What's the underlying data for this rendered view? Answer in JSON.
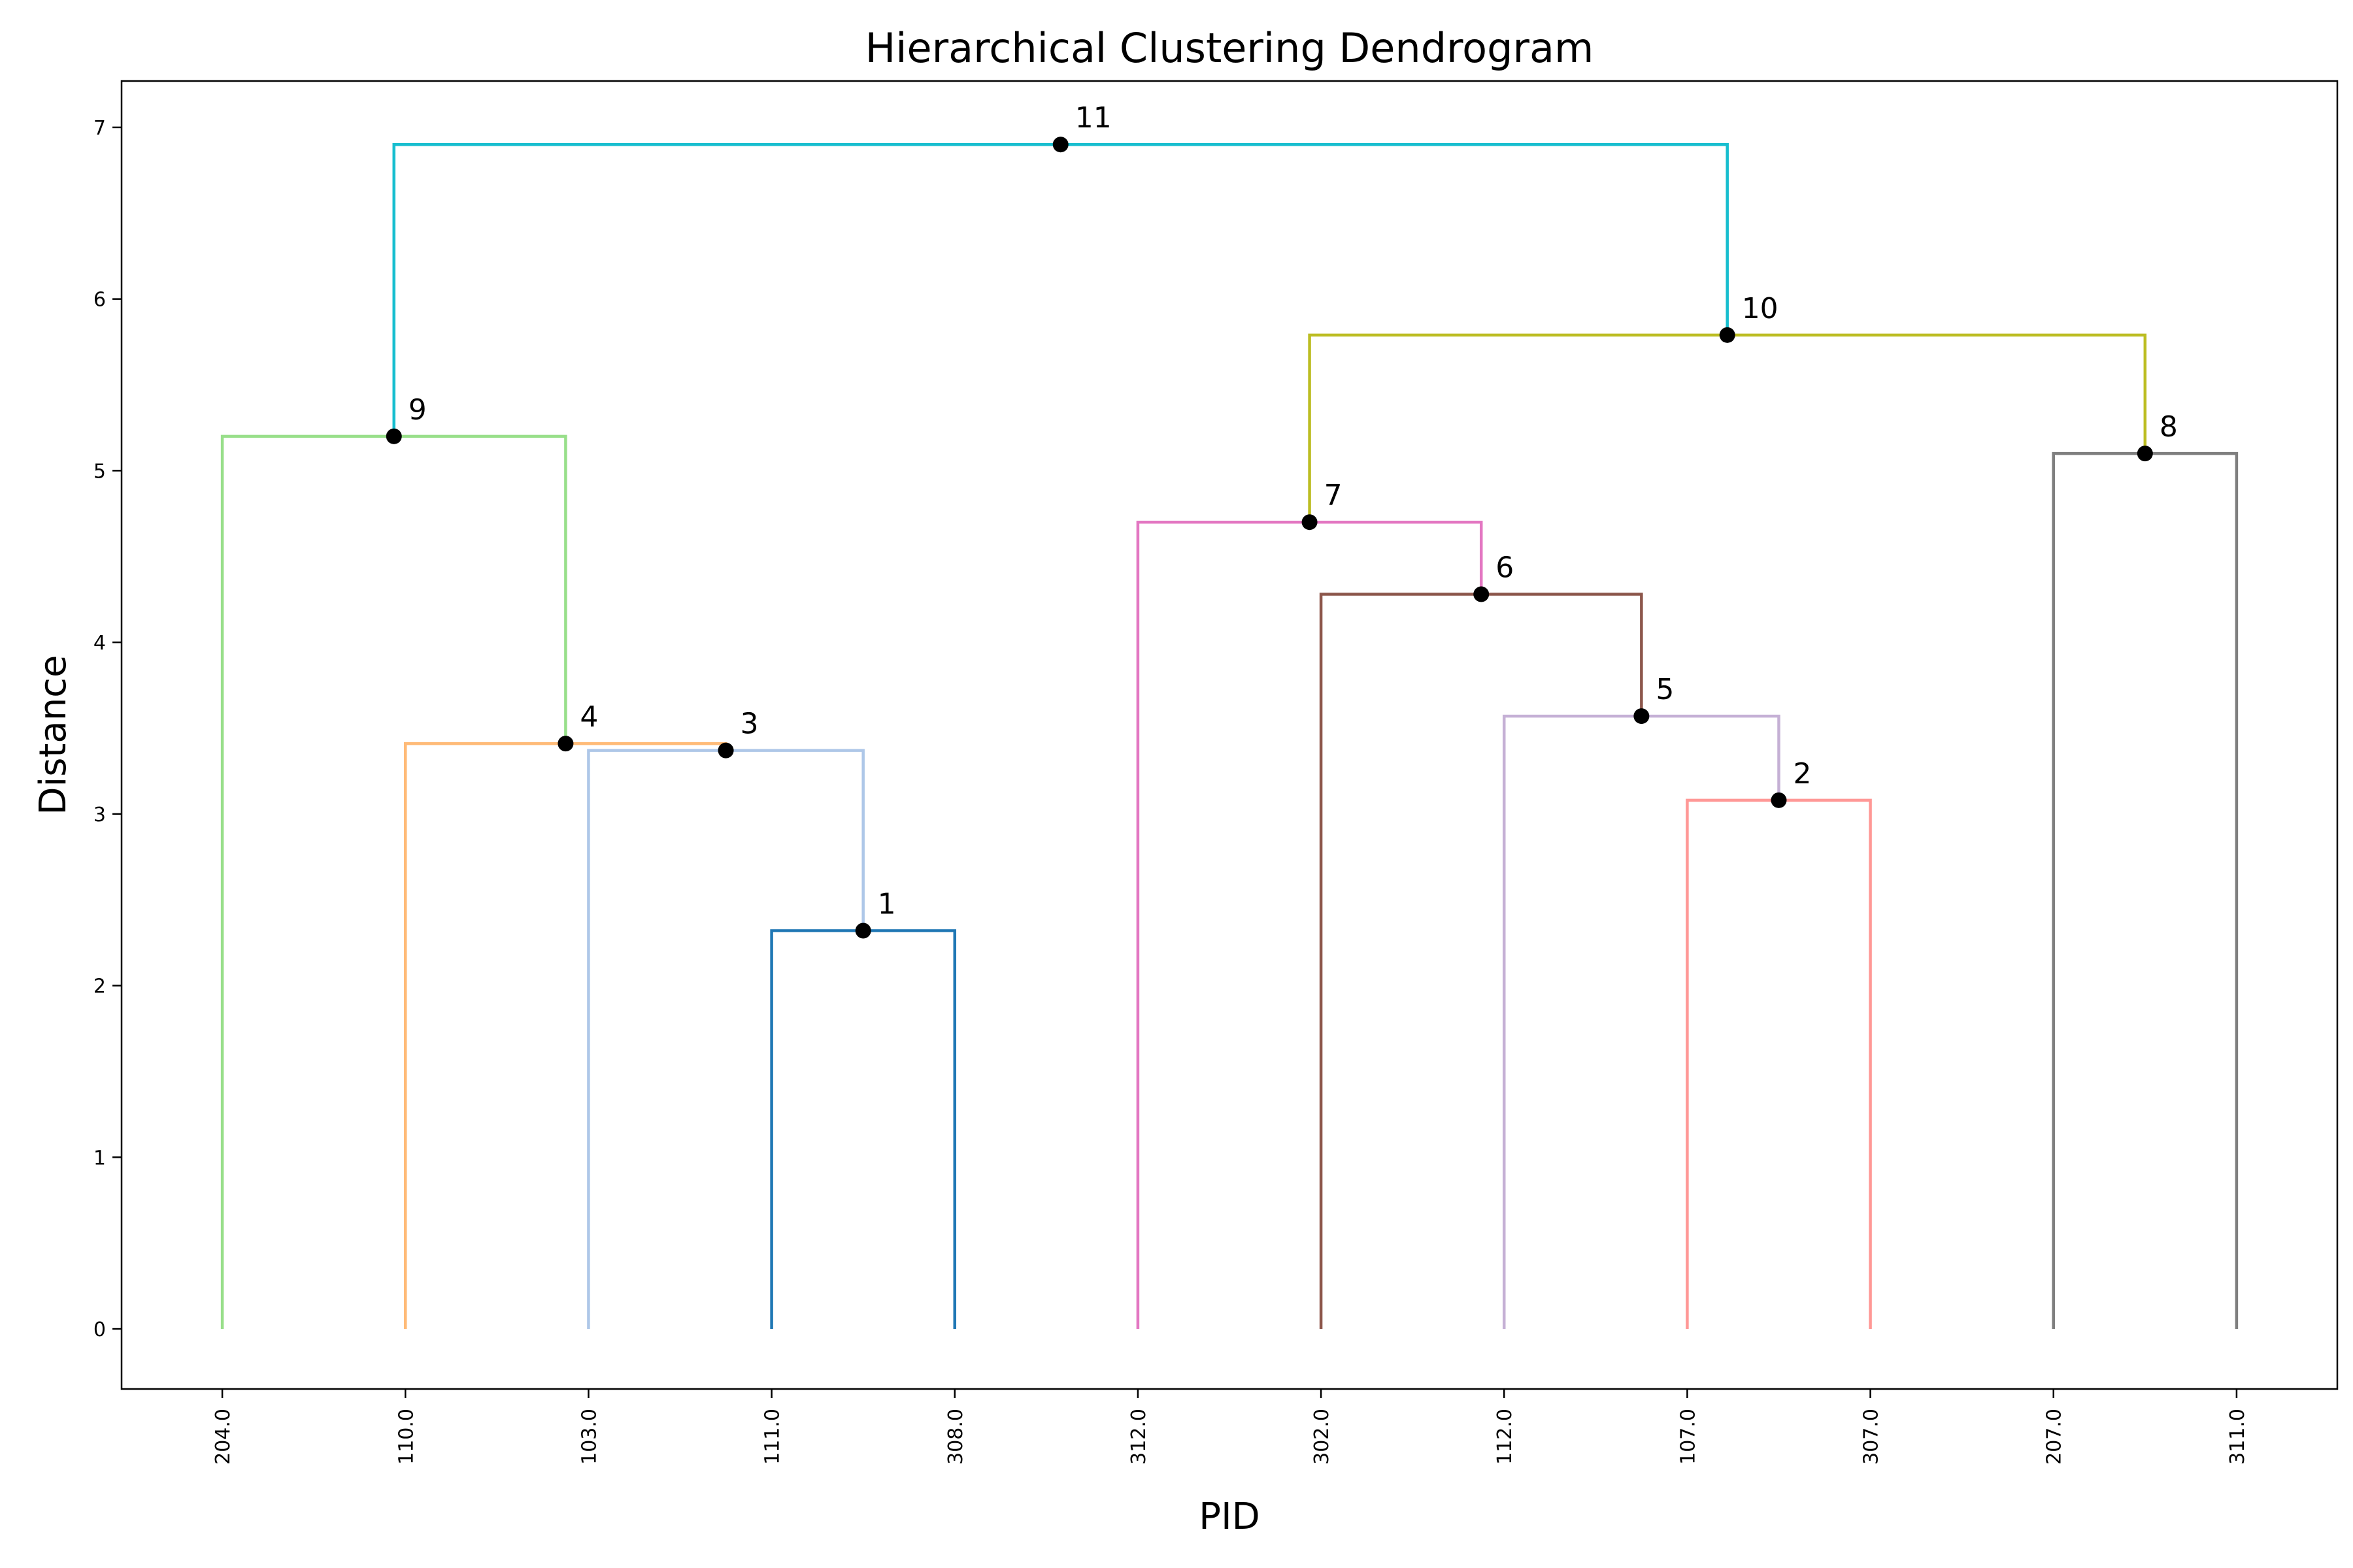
{
  "chart_data": {
    "type": "dendrogram",
    "title": "Hierarchical Clustering Dendrogram",
    "xlabel": "PID",
    "ylabel": "Distance",
    "ylim": [
      -0.35,
      7.27
    ],
    "yticks": [
      0,
      1,
      2,
      3,
      4,
      5,
      6,
      7
    ],
    "grid": false,
    "leaves": [
      "204.0",
      "110.0",
      "103.0",
      "111.0",
      "308.0",
      "312.0",
      "302.0",
      "112.0",
      "107.0",
      "307.0",
      "207.0",
      "311.0"
    ],
    "merges": [
      {
        "id": "1",
        "left": "L3",
        "right": "L4",
        "height": 2.32,
        "color": "#1f77b4"
      },
      {
        "id": "2",
        "left": "L8",
        "right": "L9",
        "height": 3.08,
        "color": "#ff9896"
      },
      {
        "id": "3",
        "left": "L2",
        "right": "N1",
        "height": 3.37,
        "color": "#aec7e8"
      },
      {
        "id": "4",
        "left": "L1",
        "right": "N3",
        "height": 3.41,
        "color": "#ffbb78"
      },
      {
        "id": "5",
        "left": "L7",
        "right": "N2",
        "height": 3.57,
        "color": "#c5b0d5"
      },
      {
        "id": "6",
        "left": "L6",
        "right": "N5",
        "height": 4.28,
        "color": "#8c564b"
      },
      {
        "id": "7",
        "left": "L5",
        "right": "N6",
        "height": 4.7,
        "color": "#e377c2"
      },
      {
        "id": "8",
        "left": "L10",
        "right": "L11",
        "height": 5.1,
        "color": "#7f7f7f"
      },
      {
        "id": "9",
        "left": "L0",
        "right": "N4",
        "height": 5.2,
        "color": "#98df8a"
      },
      {
        "id": "10",
        "left": "N7",
        "right": "N8",
        "height": 5.79,
        "color": "#bcbd22"
      },
      {
        "id": "11",
        "left": "N9",
        "right": "N10",
        "height": 6.9,
        "color": "#17becf"
      }
    ],
    "node_marker_color": "#000000"
  }
}
